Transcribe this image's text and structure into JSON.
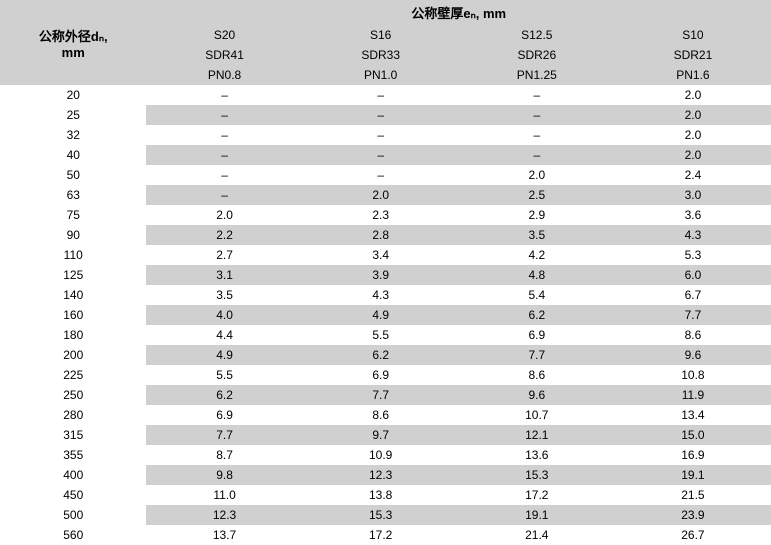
{
  "header": {
    "row_label_l1": "公称外径dₙ,",
    "row_label_l2": "mm",
    "group_title": "公称壁厚eₙ, mm",
    "columns": [
      {
        "s": "S20",
        "sdr": "SDR41",
        "pn": "PN0.8"
      },
      {
        "s": "S16",
        "sdr": "SDR33",
        "pn": "PN1.0"
      },
      {
        "s": "S12.5",
        "sdr": "SDR26",
        "pn": "PN1.25"
      },
      {
        "s": "S10",
        "sdr": "SDR21",
        "pn": "PN1.6"
      }
    ]
  },
  "rows": [
    {
      "dn": "20",
      "v": [
        "–",
        "–",
        "–",
        "2.0"
      ]
    },
    {
      "dn": "25",
      "v": [
        "–",
        "–",
        "–",
        "2.0"
      ]
    },
    {
      "dn": "32",
      "v": [
        "–",
        "–",
        "–",
        "2.0"
      ]
    },
    {
      "dn": "40",
      "v": [
        "–",
        "–",
        "–",
        "2.0"
      ]
    },
    {
      "dn": "50",
      "v": [
        "–",
        "–",
        "2.0",
        "2.4"
      ]
    },
    {
      "dn": "63",
      "v": [
        "–",
        "2.0",
        "2.5",
        "3.0"
      ]
    },
    {
      "dn": "75",
      "v": [
        "2.0",
        "2.3",
        "2.9",
        "3.6"
      ]
    },
    {
      "dn": "90",
      "v": [
        "2.2",
        "2.8",
        "3.5",
        "4.3"
      ]
    },
    {
      "dn": "110",
      "v": [
        "2.7",
        "3.4",
        "4.2",
        "5.3"
      ]
    },
    {
      "dn": "125",
      "v": [
        "3.1",
        "3.9",
        "4.8",
        "6.0"
      ]
    },
    {
      "dn": "140",
      "v": [
        "3.5",
        "4.3",
        "5.4",
        "6.7"
      ]
    },
    {
      "dn": "160",
      "v": [
        "4.0",
        "4.9",
        "6.2",
        "7.7"
      ]
    },
    {
      "dn": "180",
      "v": [
        "4.4",
        "5.5",
        "6.9",
        "8.6"
      ]
    },
    {
      "dn": "200",
      "v": [
        "4.9",
        "6.2",
        "7.7",
        "9.6"
      ]
    },
    {
      "dn": "225",
      "v": [
        "5.5",
        "6.9",
        "8.6",
        "10.8"
      ]
    },
    {
      "dn": "250",
      "v": [
        "6.2",
        "7.7",
        "9.6",
        "11.9"
      ]
    },
    {
      "dn": "280",
      "v": [
        "6.9",
        "8.6",
        "10.7",
        "13.4"
      ]
    },
    {
      "dn": "315",
      "v": [
        "7.7",
        "9.7",
        "12.1",
        "15.0"
      ]
    },
    {
      "dn": "355",
      "v": [
        "8.7",
        "10.9",
        "13.6",
        "16.9"
      ]
    },
    {
      "dn": "400",
      "v": [
        "9.8",
        "12.3",
        "15.3",
        "19.1"
      ]
    },
    {
      "dn": "450",
      "v": [
        "11.0",
        "13.8",
        "17.2",
        "21.5"
      ]
    },
    {
      "dn": "500",
      "v": [
        "12.3",
        "15.3",
        "19.1",
        "23.9"
      ]
    },
    {
      "dn": "560",
      "v": [
        "13.7",
        "17.2",
        "21.4",
        "26.7"
      ]
    }
  ],
  "colors": {
    "band_light": "#ffffff",
    "band_dark": "#d0d0d0",
    "text": "#000000"
  }
}
